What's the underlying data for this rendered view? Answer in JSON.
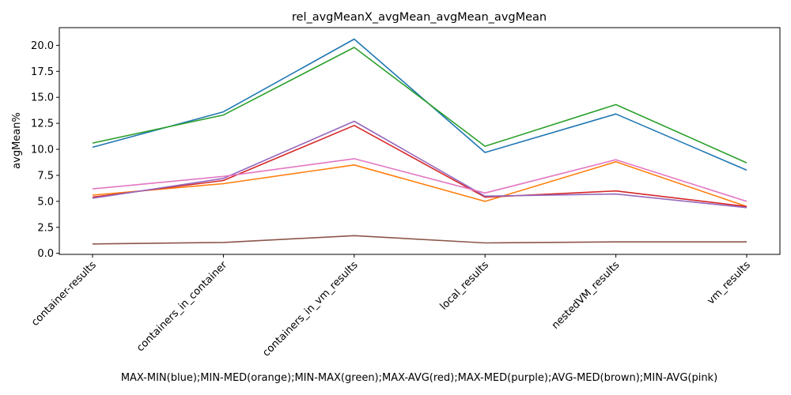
{
  "chart_data": {
    "type": "line",
    "title": "rel_avgMeanX_avgMean_avgMean_avgMean",
    "xlabel": "MAX-MIN(blue);MIN-MED(orange);MIN-MAX(green);MAX-AVG(red);MAX-MED(purple);AVG-MED(brown);MIN-AVG(pink)",
    "ylabel": "avgMean%",
    "categories": [
      "container-results",
      "containers_in_container",
      "containers_in_vm_results",
      "local_results",
      "nestedVM_results",
      "vm_results"
    ],
    "ylim": [
      -0.1,
      21.7
    ],
    "yticks": [
      0.0,
      2.5,
      5.0,
      7.5,
      10.0,
      12.5,
      15.0,
      17.5,
      20.0
    ],
    "ytick_labels": [
      "0.0",
      "2.5",
      "5.0",
      "7.5",
      "10.0",
      "12.5",
      "15.0",
      "17.5",
      "20.0"
    ],
    "grid": false,
    "legend": "none",
    "series": [
      {
        "color": "#1f77b4",
        "values": [
          10.2,
          13.6,
          20.6,
          9.7,
          13.4,
          8.0
        ]
      },
      {
        "color": "#ff7f0e",
        "values": [
          5.6,
          6.7,
          8.5,
          5.0,
          8.8,
          4.5
        ]
      },
      {
        "color": "#2ca02c",
        "values": [
          10.6,
          13.3,
          19.8,
          10.3,
          14.3,
          8.7
        ]
      },
      {
        "color": "#d62728",
        "values": [
          5.4,
          7.0,
          12.3,
          5.4,
          6.0,
          4.5
        ]
      },
      {
        "color": "#9467bd",
        "values": [
          5.3,
          7.2,
          12.7,
          5.5,
          5.7,
          4.4
        ]
      },
      {
        "color": "#8c564b",
        "values": [
          0.9,
          1.05,
          1.7,
          1.0,
          1.1,
          1.1
        ]
      },
      {
        "color": "#e377c2",
        "values": [
          6.2,
          7.4,
          9.1,
          5.8,
          9.0,
          5.0
        ]
      }
    ]
  }
}
